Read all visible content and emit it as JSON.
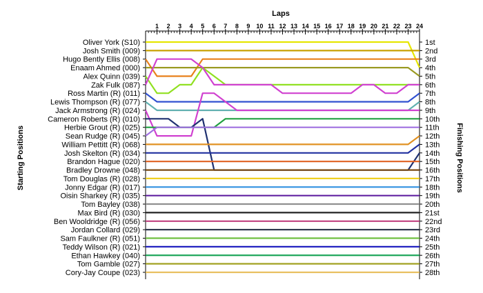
{
  "chart_data": {
    "type": "line",
    "title": "",
    "xlabel": "Laps",
    "ylabel_left": "Starting Positions",
    "ylabel_right": "Finishing Positions",
    "laps": [
      0,
      1,
      2,
      3,
      4,
      5,
      6,
      7,
      8,
      9,
      10,
      11,
      12,
      13,
      14,
      15,
      16,
      17,
      18,
      19,
      20,
      21,
      22,
      23,
      24
    ],
    "lap_tick_labels": [
      "1",
      "2",
      "3",
      "4",
      "5",
      "6",
      "7",
      "8",
      "9",
      "10",
      "11",
      "12",
      "13",
      "14",
      "15",
      "16",
      "17",
      "18",
      "19",
      "20",
      "21",
      "22",
      "23",
      "24"
    ],
    "starting_labels": [
      "Oliver York (S10)",
      "Josh Smith (009)",
      "Hugo Bently Ellis (008)",
      "Enaam Ahmed (000)",
      "Alex Quinn (039)",
      "Zak Fulk (087)",
      "Ross Martin (R) (011)",
      "Lewis Thompson (R) (077)",
      "Jack Armstrong (R) (024)",
      "Cameron Roberts (R) (010)",
      "Herbie Grout (R) (025)",
      "Sean Rudge (R) (045)",
      "William Pettitt (R) (068)",
      "Josh Skelton (R) (034)",
      "Brandon Hague (020)",
      "Bradley Drowne (048)",
      "Tom Douglas (R) (028)",
      "Jonny Edgar (R) (017)",
      "Oisin Sharkey (R) (035)",
      "Tom Bayley (038)",
      "Max Bird (R) (030)",
      "Ben Wooldridge (R) (056)",
      "Jordan Collard (029)",
      "Sam Faulkner (R) (051)",
      "Teddy Wilson (R) (021)",
      "Ethan Hawkey (040)",
      "Tom Gamble (027)",
      "Cory-Jay Coupe (023)"
    ],
    "finishing_labels": [
      "1st",
      "2nd",
      "3rd",
      "4th",
      "5th",
      "6th",
      "7th",
      "8th",
      "9th",
      "10th",
      "11th",
      "12th",
      "13th",
      "14th",
      "15th",
      "16th",
      "17th",
      "18th",
      "19th",
      "20th",
      "21st",
      "22nd",
      "23rd",
      "24th",
      "25th",
      "26th",
      "27th",
      "28th"
    ],
    "series": [
      {
        "color": "#e6e600",
        "positions": [
          1,
          1,
          1,
          1,
          1,
          1,
          1,
          1,
          1,
          1,
          1,
          1,
          1,
          1,
          1,
          1,
          1,
          1,
          1,
          1,
          1,
          1,
          1,
          1,
          4
        ]
      },
      {
        "color": "#c8a000",
        "positions": [
          2,
          2,
          2,
          2,
          2,
          2,
          2,
          2,
          2,
          2,
          2,
          2,
          2,
          2,
          2,
          2,
          2,
          2,
          2,
          2,
          2,
          2,
          2,
          2,
          2
        ]
      },
      {
        "color": "#e8801a",
        "positions": [
          3,
          5,
          5,
          5,
          5,
          3,
          3,
          3,
          3,
          3,
          3,
          3,
          3,
          3,
          3,
          3,
          3,
          3,
          3,
          3,
          3,
          3,
          3,
          3,
          3
        ]
      },
      {
        "color": "#9a9a22",
        "positions": [
          4,
          4,
          4,
          4,
          4,
          4,
          4,
          4,
          4,
          4,
          4,
          4,
          4,
          4,
          4,
          4,
          4,
          4,
          4,
          4,
          4,
          4,
          4,
          4,
          5
        ]
      },
      {
        "color": "#90e020",
        "positions": [
          5,
          7,
          7,
          6,
          6,
          4,
          5,
          6,
          6,
          6,
          6,
          6,
          6,
          6,
          6,
          6,
          6,
          6,
          6,
          6,
          6,
          6,
          6,
          6,
          6
        ]
      },
      {
        "color": "#d040d0",
        "positions": [
          6,
          3,
          3,
          3,
          3,
          4,
          6,
          6,
          6,
          6,
          6,
          6,
          7,
          7,
          7,
          7,
          7,
          7,
          7,
          6,
          6,
          7,
          7,
          6,
          6
        ]
      },
      {
        "color": "#3050d0",
        "positions": [
          7,
          8,
          8,
          8,
          8,
          8,
          8,
          8,
          8,
          8,
          8,
          8,
          8,
          8,
          8,
          8,
          8,
          8,
          8,
          8,
          8,
          8,
          8,
          8,
          7
        ]
      },
      {
        "color": "#60b0b0",
        "positions": [
          8,
          9,
          9,
          9,
          9,
          9,
          9,
          9,
          9,
          9,
          9,
          9,
          9,
          9,
          9,
          9,
          9,
          9,
          9,
          9,
          9,
          9,
          9,
          9,
          8
        ]
      },
      {
        "color": "#d040d0",
        "positions": [
          9,
          12,
          12,
          12,
          12,
          7,
          7,
          8,
          9,
          9,
          9,
          9,
          9,
          9,
          9,
          9,
          9,
          9,
          9,
          9,
          9,
          9,
          9,
          9,
          9
        ]
      },
      {
        "color": "#1e3070",
        "positions": [
          10,
          10,
          10,
          11,
          11,
          10,
          16,
          16,
          16,
          16,
          16,
          16,
          16,
          16,
          16,
          16,
          16,
          16,
          16,
          16,
          16,
          16,
          16,
          16,
          14
        ]
      },
      {
        "color": "#20a040",
        "positions": [
          11,
          11,
          11,
          11,
          11,
          11,
          11,
          10,
          10,
          10,
          10,
          10,
          10,
          10,
          10,
          10,
          10,
          10,
          10,
          10,
          10,
          10,
          10,
          10,
          10
        ]
      },
      {
        "color": "#a070e0",
        "positions": [
          12,
          11,
          11,
          11,
          11,
          11,
          11,
          11,
          11,
          11,
          11,
          11,
          11,
          11,
          11,
          11,
          11,
          11,
          11,
          11,
          11,
          11,
          11,
          11,
          11
        ]
      },
      {
        "color": "#e09020",
        "positions": [
          13,
          13,
          13,
          13,
          13,
          13,
          13,
          13,
          13,
          13,
          13,
          13,
          13,
          13,
          13,
          13,
          13,
          13,
          13,
          13,
          13,
          13,
          13,
          13,
          12
        ]
      },
      {
        "color": "#2030a0",
        "positions": [
          14,
          14,
          14,
          14,
          14,
          14,
          14,
          14,
          14,
          14,
          14,
          14,
          14,
          14,
          14,
          14,
          14,
          14,
          14,
          14,
          14,
          14,
          14,
          14,
          13
        ]
      },
      {
        "color": "#e06020",
        "positions": [
          15,
          15,
          15,
          15,
          15,
          15,
          15,
          15,
          15,
          15,
          15,
          15,
          15,
          15,
          15,
          15,
          15,
          15,
          15,
          15,
          15,
          15,
          15,
          15,
          15
        ]
      },
      {
        "color": "#7a4a10",
        "positions": [
          16,
          16,
          16,
          16,
          16,
          16,
          16,
          16,
          16,
          16,
          16,
          16,
          16,
          16,
          16,
          16,
          16,
          16,
          16,
          16,
          16,
          16,
          16,
          16,
          16
        ]
      },
      {
        "color": "#f0d020",
        "positions": [
          17,
          17,
          17,
          17,
          17,
          17,
          17,
          17,
          17,
          17,
          17,
          17,
          17,
          17,
          17,
          17,
          17,
          17,
          17,
          17,
          17,
          17,
          17,
          17,
          17
        ]
      },
      {
        "color": "#3090e0",
        "positions": [
          18,
          18,
          18,
          18,
          18,
          18,
          18,
          18,
          18,
          18,
          18,
          18,
          18,
          18,
          18,
          18,
          18,
          18,
          18,
          18,
          18,
          18,
          18,
          18,
          18
        ]
      },
      {
        "color": "#6020a0",
        "positions": [
          19,
          19,
          19,
          19,
          19,
          19,
          19,
          19,
          19,
          19,
          19,
          19,
          19,
          19,
          19,
          19,
          19,
          19,
          19,
          19,
          19,
          19,
          19,
          19,
          19
        ]
      },
      {
        "color": "#909090",
        "positions": [
          20,
          20,
          20,
          20,
          20,
          20,
          20,
          20,
          20,
          20,
          20,
          20,
          20,
          20,
          20,
          20,
          20,
          20,
          20,
          20,
          20,
          20,
          20,
          20,
          20
        ]
      },
      {
        "color": "#222222",
        "positions": [
          21,
          21,
          21,
          21,
          21,
          21,
          21,
          21,
          21,
          21,
          21,
          21,
          21,
          21,
          21,
          21,
          21,
          21,
          21,
          21,
          21,
          21,
          21,
          21,
          21
        ]
      },
      {
        "color": "#c04080",
        "positions": [
          22,
          22,
          22,
          22,
          22,
          22,
          22,
          22,
          22,
          22,
          22,
          22,
          22,
          22,
          22,
          22,
          22,
          22,
          22,
          22,
          22,
          22,
          22,
          22,
          22
        ]
      },
      {
        "color": "#303a50",
        "positions": [
          23,
          23,
          23,
          23,
          23,
          23,
          23,
          23,
          23,
          23,
          23,
          23,
          23,
          23,
          23,
          23,
          23,
          23,
          23,
          23,
          23,
          23,
          23,
          23,
          23
        ]
      },
      {
        "color": "#70c040",
        "positions": [
          24,
          24,
          24,
          24,
          24,
          24,
          24,
          24,
          24,
          24,
          24,
          24,
          24,
          24,
          24,
          24,
          24,
          24,
          24,
          24,
          24,
          24,
          24,
          24,
          24
        ]
      },
      {
        "color": "#2020c0",
        "positions": [
          25,
          25,
          25,
          25,
          25,
          25,
          25,
          25,
          25,
          25,
          25,
          25,
          25,
          25,
          25,
          25,
          25,
          25,
          25,
          25,
          25,
          25,
          25,
          25,
          25
        ]
      },
      {
        "color": "#10a050",
        "positions": [
          26,
          26,
          26,
          26,
          26,
          26,
          26,
          26,
          26,
          26,
          26,
          26,
          26,
          26,
          26,
          26,
          26,
          26,
          26,
          26,
          26,
          26,
          26,
          26,
          26
        ]
      },
      {
        "color": "#a0a020",
        "positions": [
          27,
          27,
          27,
          27,
          27,
          27,
          27,
          27,
          27,
          27,
          27,
          27,
          27,
          27,
          27,
          27,
          27,
          27,
          27,
          27,
          27,
          27,
          27,
          27,
          27
        ]
      },
      {
        "color": "#e8c060",
        "positions": [
          28,
          28,
          28,
          28,
          28,
          28,
          28,
          28,
          28,
          28,
          28,
          28,
          28,
          28,
          28,
          28,
          28,
          28,
          28,
          28,
          28,
          28,
          28,
          28,
          28
        ]
      }
    ],
    "grid": false,
    "legend": "none"
  }
}
